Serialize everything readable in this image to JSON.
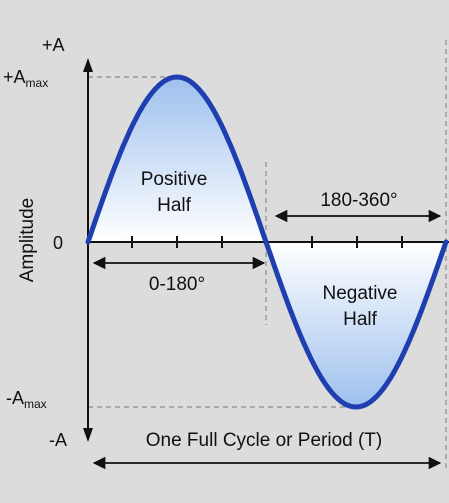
{
  "axis": {
    "y_top": "+A",
    "y_bottom": "-A",
    "zero": "0",
    "y_title": "Amplitude",
    "amax_pos": {
      "base": "+A",
      "sub": "max"
    },
    "amax_neg": {
      "base": "-A",
      "sub": "max"
    }
  },
  "regions": {
    "positive": [
      "Positive",
      "Half"
    ],
    "negative": [
      "Negative",
      "Half"
    ],
    "first_half_range": "0-180°",
    "second_half_range": "180-360°",
    "period": "One Full Cycle or Period (T)"
  },
  "colors": {
    "background": "#dcdcdc",
    "curve": "#1f3fb0",
    "fill_light": "#ffffff",
    "fill_dark": "#9ec0ee",
    "axis": "#111111",
    "dashed": "#8a8a8a"
  }
}
